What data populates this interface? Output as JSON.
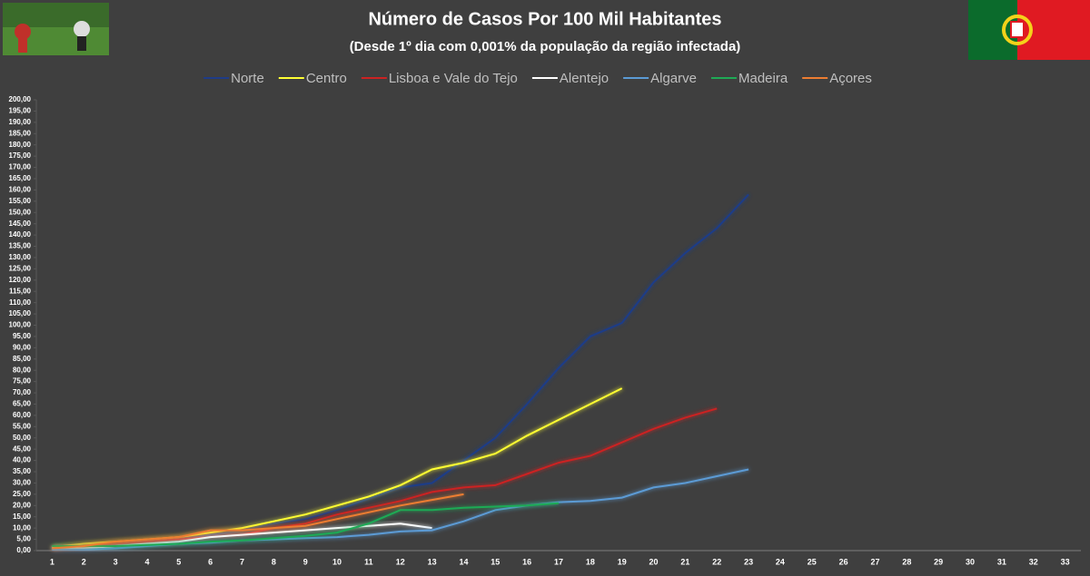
{
  "chart_data": {
    "type": "line",
    "title": "Número de Casos Por 100 Mil Habitantes",
    "subtitle": "(Desde 1º dia com 0,001% da população da região infectada)",
    "categories": [
      "1",
      "2",
      "3",
      "4",
      "5",
      "6",
      "7",
      "8",
      "9",
      "10",
      "11",
      "12",
      "13",
      "14",
      "15",
      "16",
      "17",
      "18",
      "19",
      "20",
      "21",
      "22",
      "23",
      "24",
      "25",
      "26",
      "27",
      "28",
      "29",
      "30",
      "31",
      "32",
      "33"
    ],
    "series": [
      {
        "name": "Norte",
        "color": "#1f3c88",
        "values": [
          1.5,
          2,
          3,
          4,
          5,
          7,
          9,
          12,
          14,
          18,
          23,
          28,
          30,
          40,
          50,
          65,
          81,
          95,
          101,
          119,
          132,
          143,
          158,
          null,
          null,
          null,
          null,
          null,
          null,
          null,
          null,
          null,
          null
        ]
      },
      {
        "name": "Centro",
        "color": "#ffff33",
        "values": [
          1.5,
          3,
          4,
          5,
          6,
          8,
          10,
          13,
          16,
          20,
          24,
          29,
          36,
          39,
          43,
          51,
          58,
          65,
          72,
          null,
          null,
          null,
          null,
          null,
          null,
          null,
          null,
          null,
          null,
          null,
          null,
          null,
          null
        ]
      },
      {
        "name": "Lisboa e Vale do Tejo",
        "color": "#cc2222",
        "values": [
          1,
          2,
          3,
          4,
          5,
          6,
          7,
          10,
          12,
          16,
          19,
          22,
          26,
          28,
          29,
          34,
          39,
          42,
          48,
          54,
          59,
          63,
          null,
          null,
          null,
          null,
          null,
          null,
          null,
          null,
          null,
          null,
          null
        ]
      },
      {
        "name": "Alentejo",
        "color": "#ffffff",
        "values": [
          1,
          1,
          2,
          3,
          4,
          6,
          7,
          8,
          9,
          10,
          11,
          12,
          10,
          null,
          null,
          null,
          null,
          null,
          null,
          null,
          null,
          null,
          null,
          null,
          null,
          null,
          null,
          null,
          null,
          null,
          null,
          null,
          null
        ]
      },
      {
        "name": "Algarve",
        "color": "#5b9bd5",
        "values": [
          0.5,
          0.5,
          1,
          2,
          3,
          3.5,
          4.5,
          5,
          5.5,
          6,
          7,
          8.5,
          9,
          13,
          18,
          20,
          21.5,
          22,
          23.5,
          28,
          30,
          33,
          36,
          null,
          null,
          null,
          null,
          null,
          null,
          null,
          null,
          null,
          null
        ]
      },
      {
        "name": "Madeira",
        "color": "#1faa55",
        "values": [
          2,
          2,
          2,
          2.5,
          3,
          4,
          4.5,
          5.5,
          6.5,
          8,
          12,
          18,
          18,
          19,
          19.5,
          20,
          21,
          null,
          null,
          null,
          null,
          null,
          null,
          null,
          null,
          null,
          null,
          null,
          null,
          null,
          null,
          null,
          null
        ]
      },
      {
        "name": "Açores",
        "color": "#ed7d31",
        "values": [
          1,
          2,
          4,
          5,
          6,
          9,
          9,
          10,
          11,
          14,
          17,
          20,
          22.5,
          25,
          null,
          null,
          null,
          null,
          null,
          null,
          null,
          null,
          null,
          null,
          null,
          null,
          null,
          null,
          null,
          null,
          null,
          null,
          null
        ]
      }
    ],
    "ylim": [
      0,
      200
    ],
    "yticks": [
      {
        "value": 0,
        "label": "0,00"
      },
      {
        "value": 5,
        "label": "5,00"
      },
      {
        "value": 10,
        "label": "10,00"
      },
      {
        "value": 15,
        "label": "15,00"
      },
      {
        "value": 20,
        "label": "20,00"
      },
      {
        "value": 25,
        "label": "25,00"
      },
      {
        "value": 30,
        "label": "30,00"
      },
      {
        "value": 35,
        "label": "35,00"
      },
      {
        "value": 40,
        "label": "40,00"
      },
      {
        "value": 45,
        "label": "45,00"
      },
      {
        "value": 50,
        "label": "50,00"
      },
      {
        "value": 55,
        "label": "55,00"
      },
      {
        "value": 60,
        "label": "60,00"
      },
      {
        "value": 65,
        "label": "65,00"
      },
      {
        "value": 70,
        "label": "70,00"
      },
      {
        "value": 75,
        "label": "75,00"
      },
      {
        "value": 80,
        "label": "80,00"
      },
      {
        "value": 85,
        "label": "85,00"
      },
      {
        "value": 90,
        "label": "90,00"
      },
      {
        "value": 95,
        "label": "95,00"
      },
      {
        "value": 100,
        "label": "100,00"
      },
      {
        "value": 105,
        "label": "105,00"
      },
      {
        "value": 110,
        "label": "110,00"
      },
      {
        "value": 115,
        "label": "115,00"
      },
      {
        "value": 120,
        "label": "120,00"
      },
      {
        "value": 125,
        "label": "125,00"
      },
      {
        "value": 130,
        "label": "130,00"
      },
      {
        "value": 135,
        "label": "135,00"
      },
      {
        "value": 140,
        "label": "140,00"
      },
      {
        "value": 145,
        "label": "145,00"
      },
      {
        "value": 150,
        "label": "150,00"
      },
      {
        "value": 155,
        "label": "155,00"
      },
      {
        "value": 160,
        "label": "160,00"
      },
      {
        "value": 165,
        "label": "165,00"
      },
      {
        "value": 170,
        "label": "170,00"
      },
      {
        "value": 175,
        "label": "175,00"
      },
      {
        "value": 180,
        "label": "180,00"
      },
      {
        "value": 185,
        "label": "185,00"
      },
      {
        "value": 190,
        "label": "190,00"
      },
      {
        "value": 195,
        "label": "195,00"
      },
      {
        "value": 200,
        "label": "200,00"
      }
    ],
    "grid": false,
    "legend": "top"
  }
}
